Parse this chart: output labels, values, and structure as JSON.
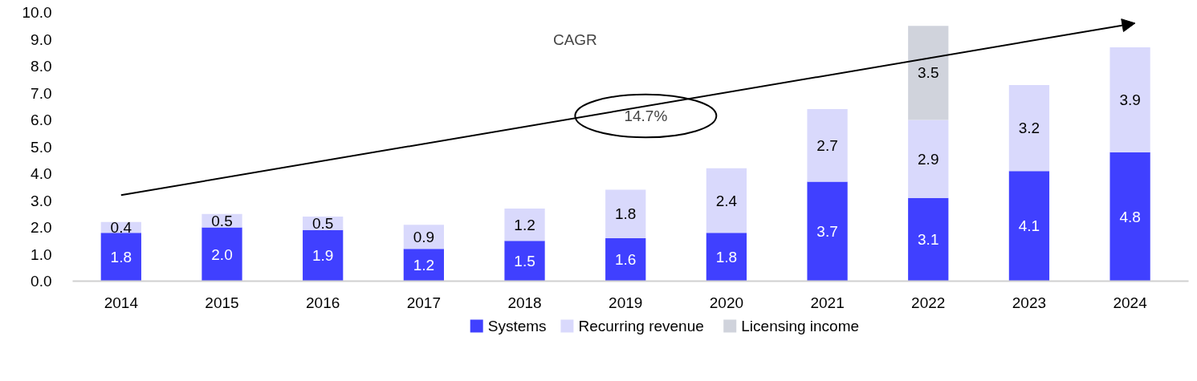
{
  "chart_data": {
    "type": "bar",
    "stacked": true,
    "categories": [
      "2014",
      "2015",
      "2016",
      "2017",
      "2018",
      "2019",
      "2020",
      "2021",
      "2022",
      "2023",
      "2024"
    ],
    "series": [
      {
        "name": "Systems",
        "color": "#4040ff",
        "values": [
          1.8,
          2.0,
          1.9,
          1.2,
          1.5,
          1.6,
          1.8,
          3.7,
          3.1,
          4.1,
          4.8
        ],
        "value_labels": [
          "1.8",
          "2.0",
          "1.9",
          "1.2",
          "1.5",
          "1.6",
          "1.8",
          "3.7",
          "3.1",
          "4.1",
          "4.8"
        ]
      },
      {
        "name": "Recurring revenue",
        "color": "#d9d9fc",
        "values": [
          0.4,
          0.5,
          0.5,
          0.9,
          1.2,
          1.8,
          2.4,
          2.7,
          2.9,
          3.2,
          3.9
        ],
        "value_labels": [
          "0.4",
          "0.5",
          "0.5",
          "0.9",
          "1.2",
          "1.8",
          "2.4",
          "2.7",
          "2.9",
          "3.2",
          "3.9"
        ]
      },
      {
        "name": "Licensing income",
        "color": "#d0d3dc",
        "values": [
          null,
          null,
          null,
          null,
          null,
          null,
          null,
          null,
          3.5,
          null,
          null
        ],
        "value_labels": [
          null,
          null,
          null,
          null,
          null,
          null,
          null,
          null,
          "3.5",
          null,
          null
        ]
      }
    ],
    "ylim": [
      0,
      10
    ],
    "yticks": [
      {
        "value": 0,
        "label": "0.0"
      },
      {
        "value": 1,
        "label": "1.0"
      },
      {
        "value": 2,
        "label": "2.0"
      },
      {
        "value": 3,
        "label": "3.0"
      },
      {
        "value": 4,
        "label": "4.0"
      },
      {
        "value": 5,
        "label": "5.0"
      },
      {
        "value": 6,
        "label": "6.0"
      },
      {
        "value": 7,
        "label": "7.0"
      },
      {
        "value": 8,
        "label": "8.0"
      },
      {
        "value": 9,
        "label": "9.0"
      },
      {
        "value": 10,
        "label": "10.0"
      }
    ],
    "grid": false,
    "legend": "bottom",
    "annotations": [
      "CAGR",
      "14.7%"
    ]
  }
}
